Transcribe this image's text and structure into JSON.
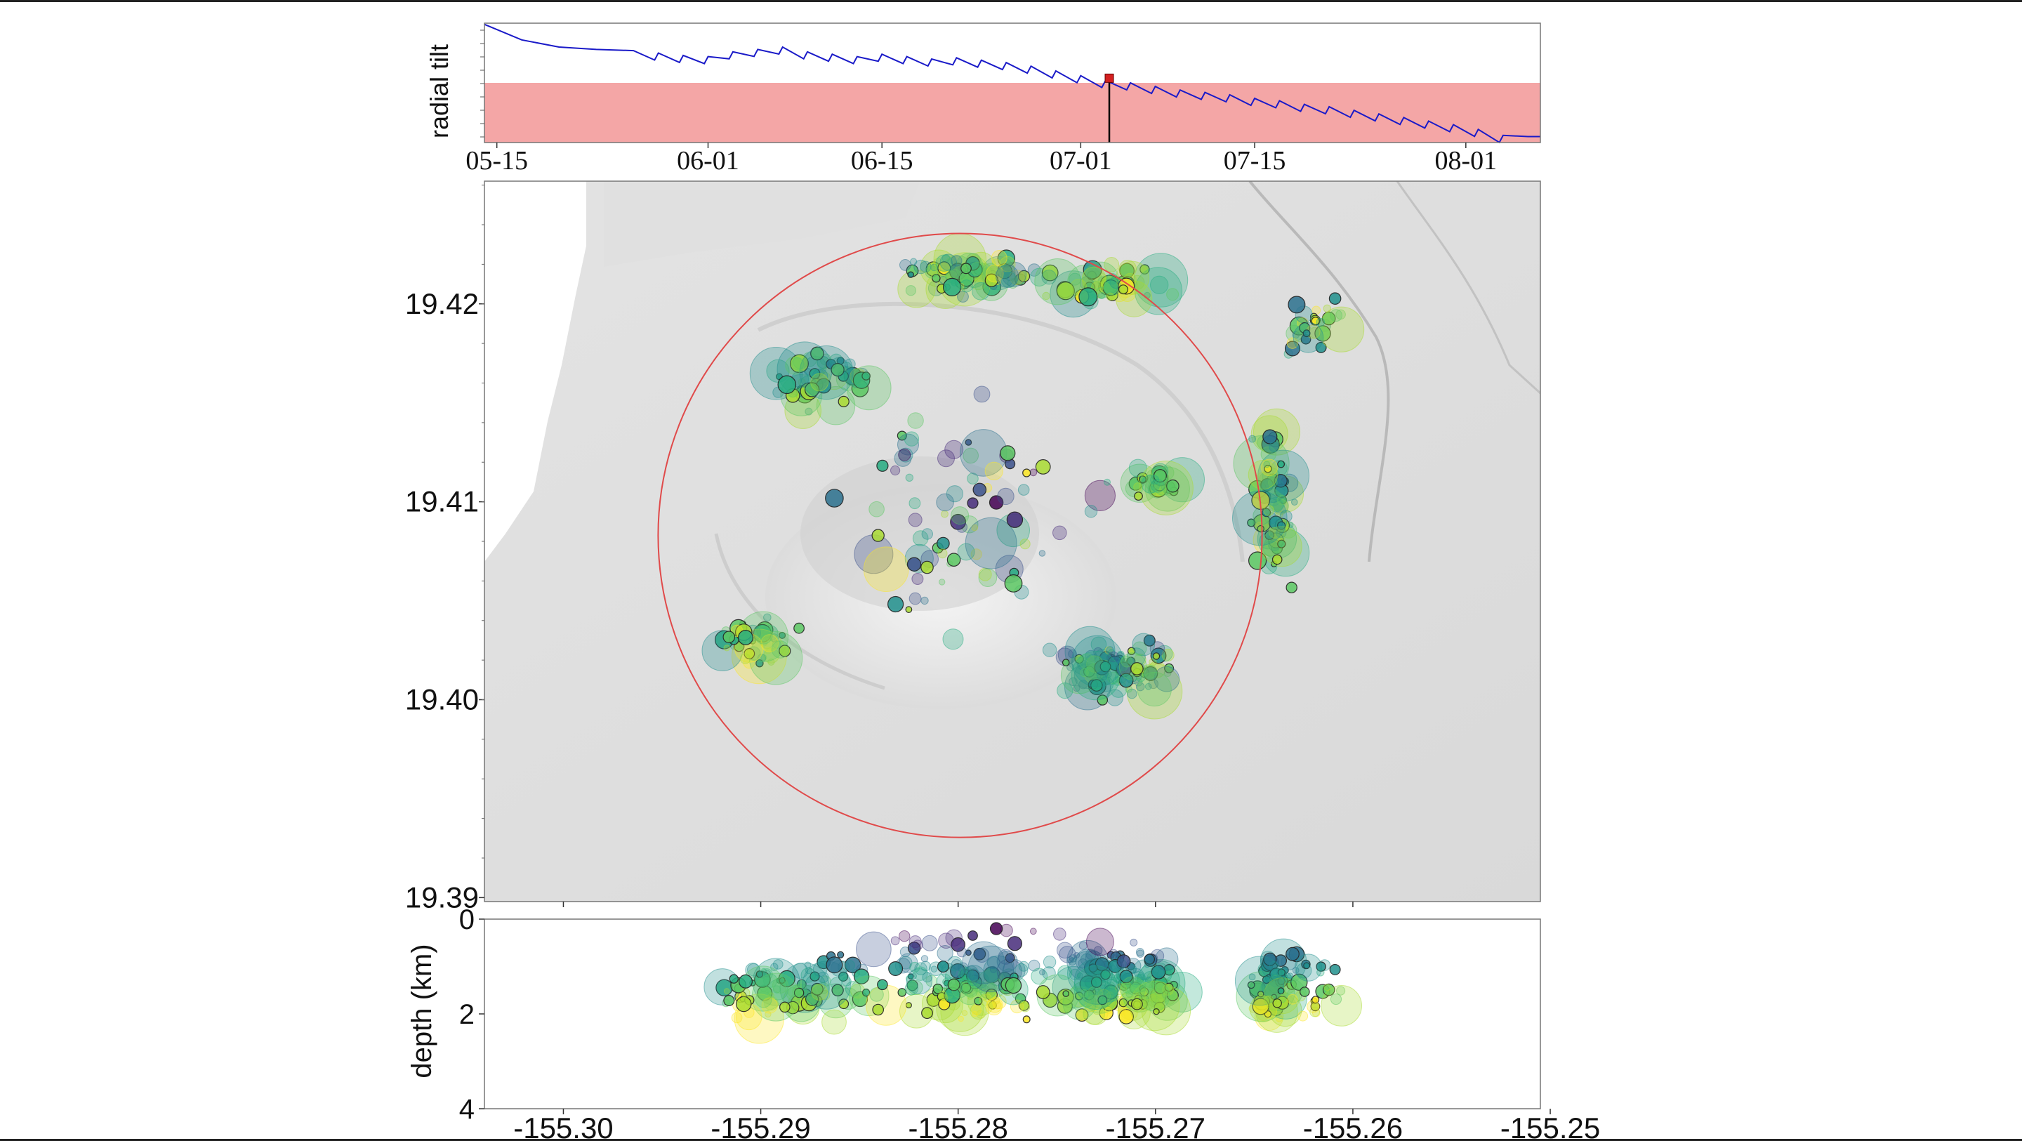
{
  "chart_data": [
    {
      "type": "line",
      "ylabel": "radial tilt",
      "xlabel": "",
      "title": "",
      "x_tick_labels": [
        "05-15",
        "06-01",
        "06-15",
        "07-01",
        "07-15",
        "08-01"
      ],
      "x_ticks_day_of_year": [
        135,
        152,
        166,
        182,
        196,
        213
      ],
      "xlim_day_of_year": [
        134,
        219
      ],
      "ylim": [
        0,
        1
      ],
      "threshold_band": {
        "from": 0,
        "to": 0.5,
        "color": "#f4a6a6"
      },
      "current_time_day_of_year": 184.3,
      "current_value": 0.48,
      "series": [
        {
          "color": "#1a1ac8",
          "x": [
            134,
            137,
            140,
            143,
            146,
            148,
            150,
            152,
            154,
            156,
            158,
            160,
            162,
            164,
            166,
            168,
            170,
            172,
            174,
            176,
            178,
            180,
            182,
            184,
            186,
            188,
            190,
            192,
            194,
            196,
            198,
            200,
            202,
            204,
            206,
            208,
            210,
            212,
            214,
            216,
            218,
            219
          ],
          "values": [
            0.99,
            0.86,
            0.8,
            0.78,
            0.77,
            0.75,
            0.73,
            0.72,
            0.76,
            0.78,
            0.8,
            0.76,
            0.74,
            0.72,
            0.74,
            0.72,
            0.7,
            0.71,
            0.69,
            0.67,
            0.64,
            0.6,
            0.56,
            0.52,
            0.5,
            0.47,
            0.44,
            0.42,
            0.4,
            0.37,
            0.35,
            0.32,
            0.3,
            0.27,
            0.24,
            0.21,
            0.18,
            0.15,
            0.11,
            0.06,
            0.05,
            0.05
          ]
        }
      ]
    },
    {
      "type": "scatter",
      "title": "",
      "xlabel": "",
      "ylabel": "",
      "xlim": [
        -155.304,
        -155.2505
      ],
      "ylim": [
        19.3888,
        19.4252
      ],
      "y_tick_labels": [
        "19.39",
        "19.40",
        "19.41",
        "19.42"
      ],
      "y_ticks": [
        19.389,
        19.399,
        19.409,
        19.419
      ],
      "x_ticks": [
        -155.3,
        -155.29,
        -155.28,
        -155.27,
        -155.26
      ],
      "background": "shaded-relief-map",
      "circle_annotation": {
        "center_lon": -155.2799,
        "center_lat": 19.4073,
        "radius_deg_lon": 0.0153,
        "color": "#e04a4a"
      },
      "colormap": "viridis",
      "color_variable": "time",
      "size_variable": "magnitude",
      "point_count_note": "clusters of earthquake epicenters"
    },
    {
      "type": "scatter",
      "title": "",
      "xlabel": "",
      "ylabel": "depth (km)",
      "xlim": [
        -155.304,
        -155.2505
      ],
      "ylim": [
        4,
        0
      ],
      "y_tick_labels": [
        "0",
        "2",
        "4"
      ],
      "y_ticks": [
        0,
        2,
        4
      ],
      "x_tick_labels": [
        "-155.30",
        "-155.29",
        "-155.28",
        "-155.27",
        "-155.26",
        "-155.25"
      ],
      "x_ticks": [
        -155.3,
        -155.29,
        -155.28,
        -155.27,
        -155.26,
        -155.25
      ],
      "colormap": "viridis"
    }
  ]
}
